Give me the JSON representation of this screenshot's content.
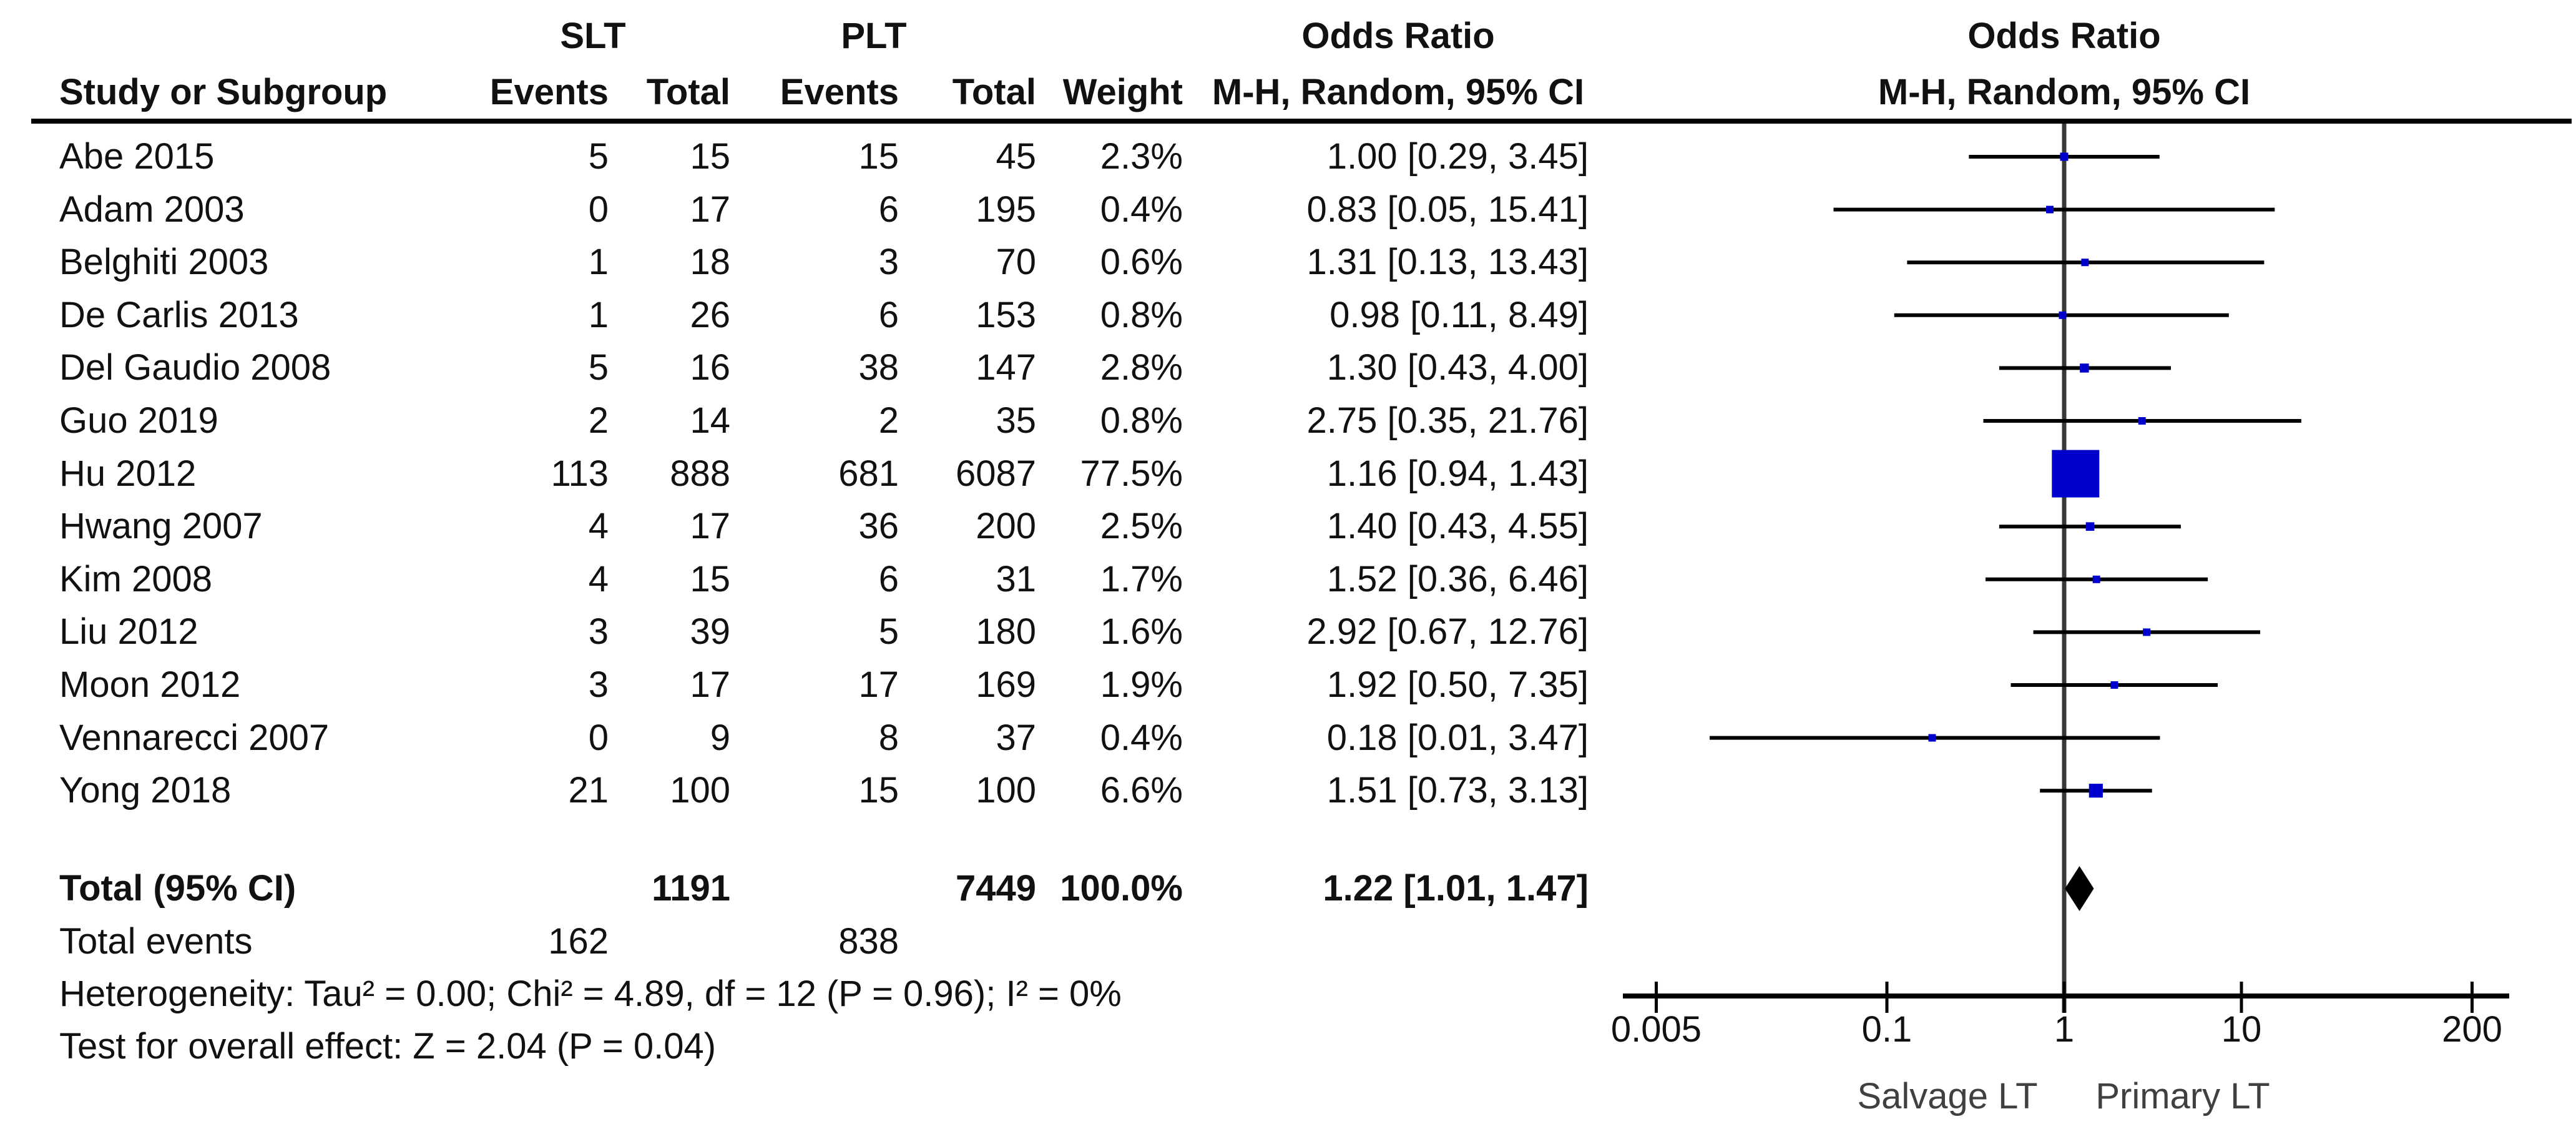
{
  "table": {
    "header": {
      "group1": "SLT",
      "group2": "PLT",
      "col_study": "Study or Subgroup",
      "col_events": "Events",
      "col_total": "Total",
      "col_weight": "Weight",
      "col_or_line1": "Odds Ratio",
      "col_or_line2": "M-H, Random, 95% CI"
    },
    "plot_header": {
      "line1": "Odds Ratio",
      "line2": "M-H, Random, 95% CI"
    }
  },
  "chart_data": {
    "type": "forest",
    "effect_measure": "Odds Ratio",
    "method": "M-H, Random, 95% CI",
    "x_scale": "log",
    "xlim": [
      0.005,
      200
    ],
    "axis_ticks": [
      0.005,
      0.1,
      1,
      10,
      200
    ],
    "axis_tick_labels": [
      "0.005",
      "0.1",
      "1",
      "10",
      "200"
    ],
    "left_label": "Salvage LT",
    "right_label": "Primary LT",
    "studies": [
      {
        "name": "Abe 2015",
        "slt_events": "5",
        "slt_total": "15",
        "plt_events": "15",
        "plt_total": "45",
        "weight": "2.3%",
        "weight_value": 2.3,
        "or": 1.0,
        "ci_low": 0.29,
        "ci_high": 3.45,
        "or_text": "1.00 [0.29, 3.45]"
      },
      {
        "name": "Adam 2003",
        "slt_events": "0",
        "slt_total": "17",
        "plt_events": "6",
        "plt_total": "195",
        "weight": "0.4%",
        "weight_value": 0.4,
        "or": 0.83,
        "ci_low": 0.05,
        "ci_high": 15.41,
        "or_text": "0.83 [0.05, 15.41]"
      },
      {
        "name": "Belghiti 2003",
        "slt_events": "1",
        "slt_total": "18",
        "plt_events": "3",
        "plt_total": "70",
        "weight": "0.6%",
        "weight_value": 0.6,
        "or": 1.31,
        "ci_low": 0.13,
        "ci_high": 13.43,
        "or_text": "1.31 [0.13, 13.43]"
      },
      {
        "name": "De Carlis 2013",
        "slt_events": "1",
        "slt_total": "26",
        "plt_events": "6",
        "plt_total": "153",
        "weight": "0.8%",
        "weight_value": 0.8,
        "or": 0.98,
        "ci_low": 0.11,
        "ci_high": 8.49,
        "or_text": "0.98 [0.11, 8.49]"
      },
      {
        "name": "Del Gaudio 2008",
        "slt_events": "5",
        "slt_total": "16",
        "plt_events": "38",
        "plt_total": "147",
        "weight": "2.8%",
        "weight_value": 2.8,
        "or": 1.3,
        "ci_low": 0.43,
        "ci_high": 4.0,
        "or_text": "1.30 [0.43, 4.00]"
      },
      {
        "name": "Guo 2019",
        "slt_events": "2",
        "slt_total": "14",
        "plt_events": "2",
        "plt_total": "35",
        "weight": "0.8%",
        "weight_value": 0.8,
        "or": 2.75,
        "ci_low": 0.35,
        "ci_high": 21.76,
        "or_text": "2.75 [0.35, 21.76]"
      },
      {
        "name": "Hu 2012",
        "slt_events": "113",
        "slt_total": "888",
        "plt_events": "681",
        "plt_total": "6087",
        "weight": "77.5%",
        "weight_value": 77.5,
        "or": 1.16,
        "ci_low": 0.94,
        "ci_high": 1.43,
        "or_text": "1.16 [0.94, 1.43]"
      },
      {
        "name": "Hwang 2007",
        "slt_events": "4",
        "slt_total": "17",
        "plt_events": "36",
        "plt_total": "200",
        "weight": "2.5%",
        "weight_value": 2.5,
        "or": 1.4,
        "ci_low": 0.43,
        "ci_high": 4.55,
        "or_text": "1.40 [0.43, 4.55]"
      },
      {
        "name": "Kim 2008",
        "slt_events": "4",
        "slt_total": "15",
        "plt_events": "6",
        "plt_total": "31",
        "weight": "1.7%",
        "weight_value": 1.7,
        "or": 1.52,
        "ci_low": 0.36,
        "ci_high": 6.46,
        "or_text": "1.52 [0.36, 6.46]"
      },
      {
        "name": "Liu 2012",
        "slt_events": "3",
        "slt_total": "39",
        "plt_events": "5",
        "plt_total": "180",
        "weight": "1.6%",
        "weight_value": 1.6,
        "or": 2.92,
        "ci_low": 0.67,
        "ci_high": 12.76,
        "or_text": "2.92 [0.67, 12.76]"
      },
      {
        "name": "Moon 2012",
        "slt_events": "3",
        "slt_total": "17",
        "plt_events": "17",
        "plt_total": "169",
        "weight": "1.9%",
        "weight_value": 1.9,
        "or": 1.92,
        "ci_low": 0.5,
        "ci_high": 7.35,
        "or_text": "1.92 [0.50, 7.35]"
      },
      {
        "name": "Vennarecci 2007",
        "slt_events": "0",
        "slt_total": "9",
        "plt_events": "8",
        "plt_total": "37",
        "weight": "0.4%",
        "weight_value": 0.4,
        "or": 0.18,
        "ci_low": 0.01,
        "ci_high": 3.47,
        "or_text": "0.18 [0.01, 3.47]"
      },
      {
        "name": "Yong 2018",
        "slt_events": "21",
        "slt_total": "100",
        "plt_events": "15",
        "plt_total": "100",
        "weight": "6.6%",
        "weight_value": 6.6,
        "or": 1.51,
        "ci_low": 0.73,
        "ci_high": 3.13,
        "or_text": "1.51 [0.73, 3.13]"
      }
    ],
    "total": {
      "label": "Total (95% CI)",
      "slt_total": "1191",
      "plt_total": "7449",
      "weight": "100.0%",
      "or": 1.22,
      "ci_low": 1.01,
      "ci_high": 1.47,
      "or_text": "1.22 [1.01, 1.47]"
    },
    "total_events": {
      "label": "Total events",
      "slt": "162",
      "plt": "838"
    },
    "heterogeneity": "Heterogeneity: Tau² = 0.00; Chi² = 4.89, df = 12 (P = 0.96); I² = 0%",
    "overall_effect": "Test for overall effect: Z = 2.04 (P = 0.04)",
    "colors": {
      "square": "#0000CC",
      "ci_line": "#000000",
      "diamond": "#000000",
      "axis": "#000000",
      "center_line": "#383838"
    }
  }
}
